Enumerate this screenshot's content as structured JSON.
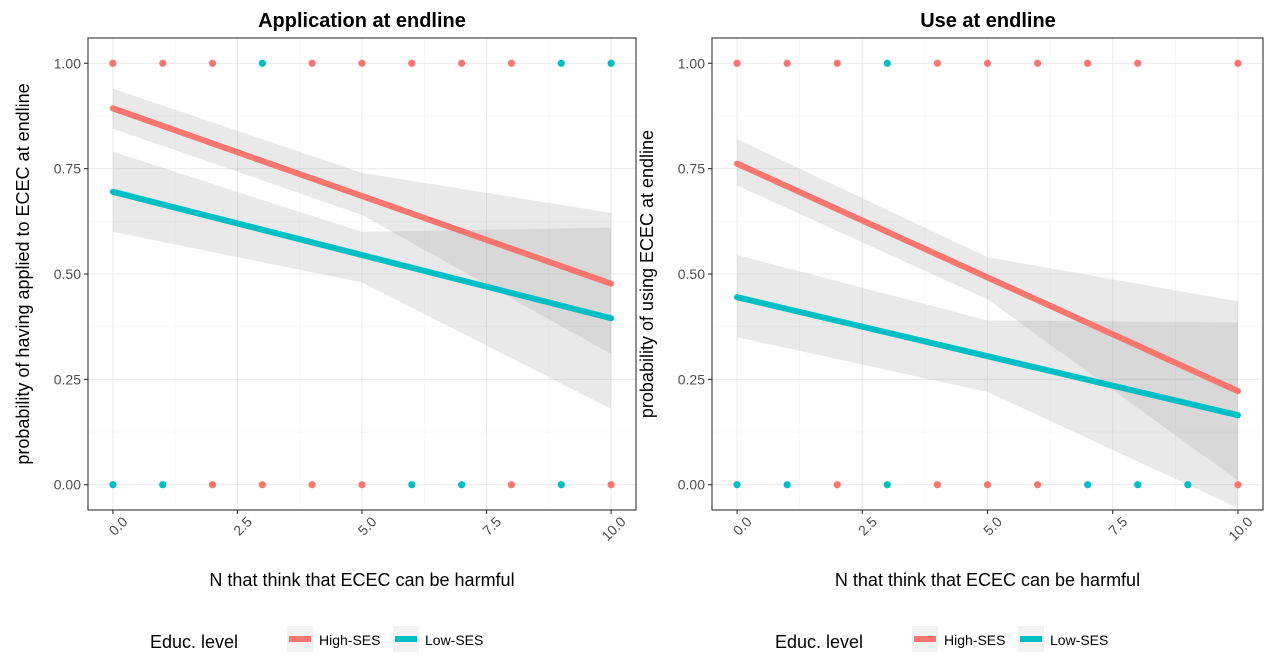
{
  "colors": {
    "high": "#F8766D",
    "low": "#00BFC4",
    "ribbon": "#999999"
  },
  "legend_title": "Educ. level",
  "chart_data": [
    {
      "type": "scatter",
      "title": "Application at endline",
      "xlabel": "N that think that ECEC can be harmful",
      "ylabel": "probability of having applied to ECEC at endline",
      "xlim": [
        -0.5,
        10.5
      ],
      "ylim": [
        -0.06,
        1.06
      ],
      "xticks": [
        0,
        2.5,
        5,
        7.5,
        10
      ],
      "xtick_labels": [
        "0.0",
        "2.5",
        "5.0",
        "7.5",
        "10.0"
      ],
      "yticks": [
        0,
        0.25,
        0.5,
        0.75,
        1
      ],
      "ytick_labels": [
        "0.00",
        "0.25",
        "0.50",
        "0.75",
        "1.00"
      ],
      "grid": true,
      "legend_position": "bottom",
      "series": [
        {
          "name": "High-SES",
          "points": [
            [
              0,
              1
            ],
            [
              1,
              1
            ],
            [
              2,
              1
            ],
            [
              4,
              1
            ],
            [
              5,
              1
            ],
            [
              6,
              1
            ],
            [
              7,
              1
            ],
            [
              8,
              1
            ],
            [
              2,
              0
            ],
            [
              3,
              0
            ],
            [
              4,
              0
            ],
            [
              5,
              0
            ],
            [
              8,
              0
            ],
            [
              10,
              0
            ]
          ],
          "fit": [
            [
              0,
              0.893
            ],
            [
              10,
              0.477
            ]
          ],
          "ribbon_lower": [
            [
              0,
              0.845
            ],
            [
              5,
              0.64
            ],
            [
              10,
              0.31
            ]
          ],
          "ribbon_upper": [
            [
              0,
              0.94
            ],
            [
              5,
              0.74
            ],
            [
              10,
              0.645
            ]
          ]
        },
        {
          "name": "Low-SES",
          "points": [
            [
              3,
              1
            ],
            [
              9,
              1
            ],
            [
              10,
              1
            ],
            [
              0,
              0
            ],
            [
              1,
              0
            ],
            [
              6,
              0
            ],
            [
              7,
              0
            ],
            [
              9,
              0
            ]
          ],
          "fit": [
            [
              0,
              0.695
            ],
            [
              10,
              0.395
            ]
          ],
          "ribbon_lower": [
            [
              0,
              0.6
            ],
            [
              5,
              0.48
            ],
            [
              10,
              0.18
            ]
          ],
          "ribbon_upper": [
            [
              0,
              0.79
            ],
            [
              5,
              0.6
            ],
            [
              10,
              0.61
            ]
          ]
        }
      ]
    },
    {
      "type": "scatter",
      "title": "Use at endline",
      "xlabel": "N that think that ECEC can be harmful",
      "ylabel": "probability of using ECEC at endline",
      "xlim": [
        -0.5,
        10.5
      ],
      "ylim": [
        -0.06,
        1.06
      ],
      "xticks": [
        0,
        2.5,
        5,
        7.5,
        10
      ],
      "xtick_labels": [
        "0.0",
        "2.5",
        "5.0",
        "7.5",
        "10.0"
      ],
      "yticks": [
        0,
        0.25,
        0.5,
        0.75,
        1
      ],
      "ytick_labels": [
        "0.00",
        "0.25",
        "0.50",
        "0.75",
        "1.00"
      ],
      "grid": true,
      "legend_position": "bottom",
      "series": [
        {
          "name": "High-SES",
          "points": [
            [
              0,
              1
            ],
            [
              1,
              1
            ],
            [
              2,
              1
            ],
            [
              4,
              1
            ],
            [
              5,
              1
            ],
            [
              6,
              1
            ],
            [
              7,
              1
            ],
            [
              8,
              1
            ],
            [
              10,
              1
            ],
            [
              2,
              0
            ],
            [
              4,
              0
            ],
            [
              5,
              0
            ],
            [
              6,
              0
            ],
            [
              10,
              0
            ]
          ],
          "fit": [
            [
              0,
              0.762
            ],
            [
              10,
              0.222
            ]
          ],
          "ribbon_lower": [
            [
              0,
              0.71
            ],
            [
              5,
              0.44
            ],
            [
              10,
              0.01
            ]
          ],
          "ribbon_upper": [
            [
              0,
              0.82
            ],
            [
              5,
              0.54
            ],
            [
              10,
              0.435
            ]
          ]
        },
        {
          "name": "Low-SES",
          "points": [
            [
              3,
              1
            ],
            [
              0,
              0
            ],
            [
              1,
              0
            ],
            [
              3,
              0
            ],
            [
              7,
              0
            ],
            [
              8,
              0
            ],
            [
              9,
              0
            ]
          ],
          "fit": [
            [
              0,
              0.445
            ],
            [
              10,
              0.165
            ]
          ],
          "ribbon_lower": [
            [
              0,
              0.35
            ],
            [
              5,
              0.22
            ],
            [
              10,
              -0.055
            ]
          ],
          "ribbon_upper": [
            [
              0,
              0.545
            ],
            [
              5,
              0.39
            ],
            [
              10,
              0.385
            ]
          ]
        }
      ]
    }
  ]
}
